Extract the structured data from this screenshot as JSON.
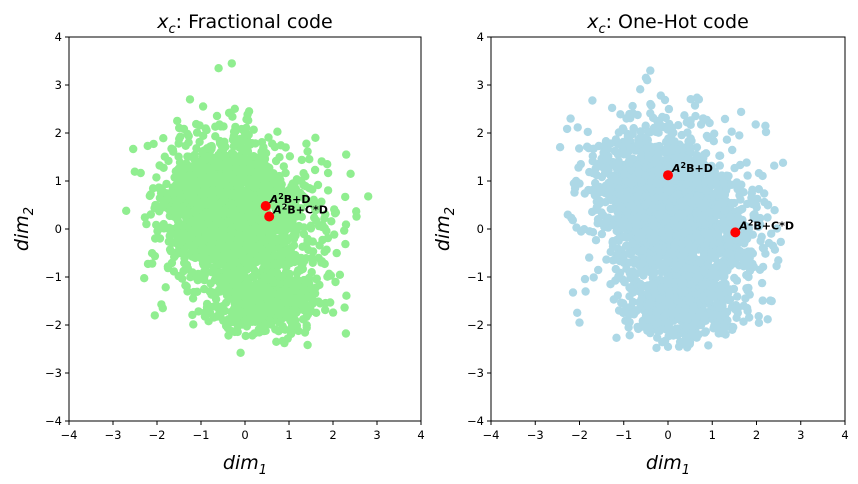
{
  "chart_data": [
    {
      "type": "scatter",
      "title_var": "x",
      "title_var_sub": "c",
      "title_rest": ": Fractional code",
      "xlabel_base": "dim",
      "xlabel_sub": "1",
      "ylabel_base": "dim",
      "ylabel_sub": "2",
      "xlim": [
        -4,
        4
      ],
      "ylim": [
        -4,
        4
      ],
      "xticks": [
        -4,
        -3,
        -2,
        -1,
        0,
        1,
        2,
        3,
        4
      ],
      "yticks": [
        -4,
        -3,
        -2,
        -1,
        0,
        1,
        2,
        3,
        4
      ],
      "grid": false,
      "point_color": "#90ee90",
      "highlight_color": "#ff0000",
      "cloud": {
        "description_counts": "dense green cloud of ~3000 points",
        "clusters": [
          {
            "center": [
              -0.6,
              0.5
            ],
            "spread": [
              0.65,
              0.75
            ],
            "weight": 0.5
          },
          {
            "center": [
              0.3,
              0.1
            ],
            "spread": [
              0.8,
              0.7
            ],
            "weight": 0.3
          },
          {
            "center": [
              0.5,
              -1.5
            ],
            "spread": [
              0.6,
              0.35
            ],
            "weight": 0.2
          }
        ],
        "outliers": [
          [
            -2.7,
            0.38
          ],
          [
            -0.3,
            3.45
          ],
          [
            -0.6,
            3.35
          ],
          [
            2.8,
            0.68
          ],
          [
            2.4,
            1.15
          ],
          [
            -2.05,
            -1.8
          ],
          [
            -0.1,
            -2.58
          ],
          [
            -1.25,
            2.7
          ],
          [
            1.6,
            1.9
          ],
          [
            2.3,
            1.55
          ]
        ]
      },
      "highlights": [
        {
          "x": 0.47,
          "y": 0.48,
          "label_base": "A",
          "label_sup": "2",
          "label_rest": "B+D"
        },
        {
          "x": 0.55,
          "y": 0.26,
          "label_base": "A",
          "label_sup": "2",
          "label_rest": "B+C*D"
        }
      ]
    },
    {
      "type": "scatter",
      "title_var": "x",
      "title_var_sub": "c",
      "title_rest": ": One-Hot code",
      "xlabel_base": "dim",
      "xlabel_sub": "1",
      "ylabel_base": "dim",
      "ylabel_sub": "2",
      "xlim": [
        -4,
        4
      ],
      "ylim": [
        -4,
        4
      ],
      "xticks": [
        -4,
        -3,
        -2,
        -1,
        0,
        1,
        2,
        3,
        4
      ],
      "yticks": [
        -4,
        -3,
        -2,
        -1,
        0,
        1,
        2,
        3,
        4
      ],
      "grid": false,
      "point_color": "#add8e6",
      "highlight_color": "#ff0000",
      "cloud": {
        "clusters": [
          {
            "center": [
              -0.3,
              0.7
            ],
            "spread": [
              0.7,
              0.8
            ],
            "weight": 0.45
          },
          {
            "center": [
              0.6,
              -0.1
            ],
            "spread": [
              0.75,
              0.75
            ],
            "weight": 0.35
          },
          {
            "center": [
              0.3,
              -1.6
            ],
            "spread": [
              0.65,
              0.35
            ],
            "weight": 0.2
          }
        ],
        "outliers": [
          [
            -2.1,
            0.85
          ],
          [
            -2.2,
            2.3
          ],
          [
            -0.4,
            3.3
          ],
          [
            -0.5,
            3.15
          ],
          [
            2.6,
            1.38
          ],
          [
            2.2,
            2.15
          ],
          [
            0.25,
            -2.45
          ],
          [
            -2.0,
            -1.95
          ],
          [
            1.55,
            -1.85
          ],
          [
            -1.3,
            -1.15
          ]
        ]
      },
      "highlights": [
        {
          "x": 0.0,
          "y": 1.12,
          "label_base": "A",
          "label_sup": "2",
          "label_rest": "B+D"
        },
        {
          "x": 1.52,
          "y": -0.07,
          "label_base": "A",
          "label_sup": "2",
          "label_rest": "B+C*D"
        }
      ]
    }
  ]
}
